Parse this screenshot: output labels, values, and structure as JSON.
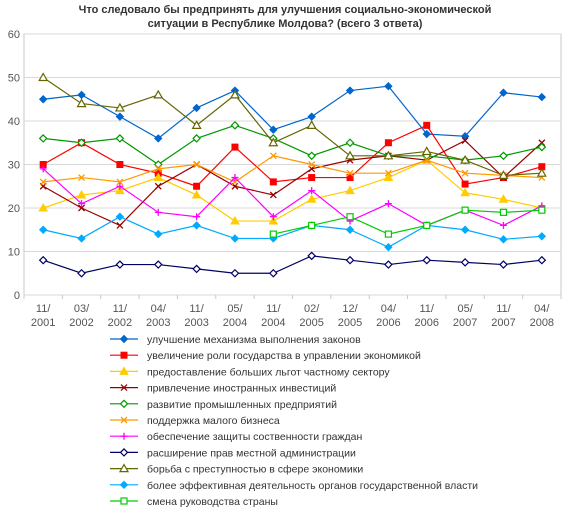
{
  "chart_data": {
    "type": "line",
    "title_lines": [
      "Что следовало бы предпринять для улучшения социально-экономической",
      "ситуации в Республике Молдова? (всего 3 ответа)"
    ],
    "categories": [
      [
        "11/",
        "2001"
      ],
      [
        "03/",
        "2002"
      ],
      [
        "11/",
        "2002"
      ],
      [
        "04/",
        "2003"
      ],
      [
        "11/",
        "2003"
      ],
      [
        "05/",
        "2004"
      ],
      [
        "11/",
        "2004"
      ],
      [
        "02/",
        "2005"
      ],
      [
        "12/",
        "2005"
      ],
      [
        "04/",
        "2006"
      ],
      [
        "11/",
        "2006"
      ],
      [
        "05/",
        "2007"
      ],
      [
        "11/",
        "2007"
      ],
      [
        "04/",
        "2008"
      ]
    ],
    "ylim": [
      0,
      60
    ],
    "yticks": [
      0,
      10,
      20,
      30,
      40,
      50,
      60
    ],
    "grid": true,
    "legend_position": "bottom",
    "series": [
      {
        "name": "улучшение механизма выполнения законов",
        "color": "#0066cc",
        "marker": "diamond-filled",
        "values": [
          45,
          46,
          41,
          36,
          43,
          47,
          38,
          41,
          47,
          48,
          37,
          36.5,
          46.5,
          45.5
        ]
      },
      {
        "name": "увеличение роли государства в управлении экономикой",
        "color": "#ff0000",
        "marker": "square-filled",
        "values": [
          30,
          35,
          30,
          28,
          25,
          34,
          26,
          27,
          27,
          35,
          39,
          25.5,
          27,
          29.5
        ]
      },
      {
        "name": "предоставление больших льгот частному сектору",
        "color": "#ffcc00",
        "marker": "triangle-filled",
        "values": [
          20,
          23,
          24,
          27,
          23,
          17,
          17,
          22,
          24,
          27,
          31,
          23.5,
          22,
          20
        ]
      },
      {
        "name": "привлечение иностранных инвестиций",
        "color": "#990000",
        "marker": "x",
        "values": [
          25,
          20,
          16,
          25,
          30,
          25,
          23,
          29,
          31,
          32,
          31,
          35.5,
          27,
          35
        ]
      },
      {
        "name": "развитие промышленных предприятий",
        "color": "#009900",
        "marker": "diamond-open",
        "values": [
          36,
          35,
          36,
          30,
          36,
          39,
          36,
          32,
          35,
          32,
          32,
          31,
          32,
          34
        ]
      },
      {
        "name": "поддержка малого бизнеса",
        "color": "#ff9900",
        "marker": "x",
        "values": [
          26,
          27,
          26,
          29,
          30,
          26,
          32,
          30,
          28,
          28,
          31,
          28,
          27.5,
          27
        ]
      },
      {
        "name": "обеспечение защиты соственности граждан",
        "color": "#ff00ff",
        "marker": "plus",
        "values": [
          29,
          21,
          25,
          19,
          18,
          27,
          18,
          24,
          17,
          21,
          16,
          19.5,
          16,
          20.5
        ]
      },
      {
        "name": "расширение прав местной администрации",
        "color": "#000066",
        "marker": "diamond-open",
        "values": [
          8,
          5,
          7,
          7,
          6,
          5,
          5,
          9,
          8,
          7,
          8,
          7.5,
          7,
          8
        ]
      },
      {
        "name": "борьба с преступностью в сфере экономики",
        "color": "#666600",
        "marker": "triangle-open",
        "values": [
          50,
          44,
          43,
          46,
          39,
          46,
          35,
          39,
          32,
          32,
          33,
          31,
          27.5,
          28
        ]
      },
      {
        "name": "более эффективная деятельность органов государственной власти",
        "color": "#00aaff",
        "marker": "diamond-filled",
        "values": [
          15,
          13,
          18,
          14,
          16,
          13,
          13,
          16,
          15,
          11,
          16,
          15,
          12.8,
          13.5
        ]
      },
      {
        "name": "смена руководства страны",
        "color": "#00cc00",
        "marker": "square-open",
        "values": [
          null,
          null,
          null,
          null,
          null,
          null,
          14,
          16,
          18,
          14,
          16,
          19.5,
          19,
          19.5
        ]
      }
    ]
  }
}
